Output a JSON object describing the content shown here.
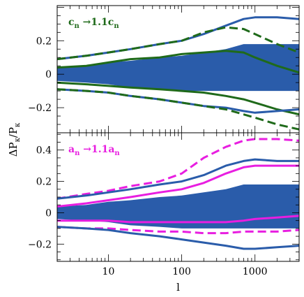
{
  "chart_data": [
    {
      "type": "line",
      "panel": "top",
      "annotation_main": "c",
      "annotation_sub": "n",
      "annotation_mid": " →1.1c",
      "annotation_sub2": "n",
      "annotation_color": "#1f6a1a",
      "xscale": "log",
      "xlim": [
        2,
        4000
      ],
      "ylim": [
        -0.35,
        0.41
      ],
      "xticks": [
        10,
        100,
        1000
      ],
      "xtick_labels": [
        "",
        "",
        ""
      ],
      "yticks": [
        -0.2,
        0,
        0.2
      ],
      "ytick_labels": [
        "−0.2",
        "0",
        "0.2"
      ],
      "band": {
        "color": "#2a5caa",
        "x": [
          2,
          5,
          10,
          20,
          50,
          100,
          200,
          400,
          700,
          1000,
          2000,
          4000
        ],
        "upper": [
          0.04,
          0.05,
          0.07,
          0.08,
          0.1,
          0.11,
          0.13,
          0.15,
          0.18,
          0.18,
          0.18,
          0.18
        ],
        "lower": [
          -0.04,
          -0.05,
          -0.06,
          -0.08,
          -0.09,
          -0.1,
          -0.1,
          -0.1,
          -0.1,
          -0.1,
          -0.1,
          -0.1
        ]
      },
      "series": [
        {
          "style": "blue-solid",
          "color": "#2a5caa",
          "x": [
            2,
            5,
            10,
            20,
            50,
            100,
            200,
            400,
            700,
            1000,
            2000,
            4000
          ],
          "y": [
            0.09,
            0.11,
            0.13,
            0.15,
            0.18,
            0.2,
            0.24,
            0.29,
            0.33,
            0.34,
            0.34,
            0.33
          ]
        },
        {
          "style": "green-dashed",
          "color": "#1f6a1a",
          "x": [
            2,
            5,
            10,
            20,
            50,
            100,
            200,
            400,
            700,
            1000,
            2000,
            4000
          ],
          "y": [
            0.09,
            0.11,
            0.13,
            0.15,
            0.18,
            0.2,
            0.25,
            0.28,
            0.27,
            0.24,
            0.18,
            0.13
          ]
        },
        {
          "style": "green-solid",
          "color": "#1f6a1a",
          "x": [
            2,
            5,
            10,
            20,
            50,
            100,
            200,
            400,
            700,
            1000,
            2000,
            4000
          ],
          "y": [
            0.04,
            0.05,
            0.07,
            0.09,
            0.1,
            0.12,
            0.13,
            0.14,
            0.13,
            0.1,
            0.05,
            0.01
          ]
        },
        {
          "style": "green-solid",
          "color": "#1f6a1a",
          "x": [
            2,
            5,
            10,
            20,
            50,
            100,
            200,
            400,
            700,
            1000,
            2000,
            4000
          ],
          "y": [
            -0.05,
            -0.06,
            -0.07,
            -0.08,
            -0.09,
            -0.1,
            -0.11,
            -0.13,
            -0.15,
            -0.17,
            -0.21,
            -0.24
          ]
        },
        {
          "style": "blue-solid",
          "color": "#2a5caa",
          "x": [
            2,
            5,
            10,
            20,
            50,
            100,
            200,
            400,
            700,
            1000,
            2000,
            4000
          ],
          "y": [
            -0.09,
            -0.1,
            -0.11,
            -0.13,
            -0.15,
            -0.17,
            -0.19,
            -0.2,
            -0.22,
            -0.23,
            -0.22,
            -0.21
          ]
        },
        {
          "style": "green-dashed",
          "color": "#1f6a1a",
          "x": [
            2,
            5,
            10,
            20,
            50,
            100,
            200,
            400,
            700,
            1000,
            2000,
            4000
          ],
          "y": [
            -0.09,
            -0.1,
            -0.11,
            -0.13,
            -0.15,
            -0.17,
            -0.19,
            -0.21,
            -0.24,
            -0.26,
            -0.3,
            -0.33
          ]
        }
      ]
    },
    {
      "type": "line",
      "panel": "bottom",
      "annotation_main": "a",
      "annotation_sub": "n",
      "annotation_mid": " →1.1a",
      "annotation_sub2": "n",
      "annotation_color": "#e81ee0",
      "xscale": "log",
      "xlim": [
        2,
        4000
      ],
      "ylim": [
        -0.31,
        0.51
      ],
      "xticks": [
        10,
        100,
        1000
      ],
      "xtick_labels": [
        "10",
        "100",
        "1000"
      ],
      "yticks": [
        -0.2,
        0,
        0.2,
        0.4
      ],
      "ytick_labels": [
        "−0.2",
        "0",
        "0.2",
        "0.4"
      ],
      "xlabel": "l",
      "band": {
        "color": "#2a5caa",
        "x": [
          2,
          5,
          10,
          20,
          50,
          100,
          200,
          400,
          700,
          1000,
          2000,
          4000
        ],
        "upper": [
          0.04,
          0.05,
          0.07,
          0.08,
          0.1,
          0.11,
          0.13,
          0.15,
          0.18,
          0.18,
          0.18,
          0.18
        ],
        "lower": [
          -0.04,
          -0.05,
          -0.06,
          -0.08,
          -0.09,
          -0.1,
          -0.1,
          -0.1,
          -0.1,
          -0.1,
          -0.1,
          -0.1
        ]
      },
      "series": [
        {
          "style": "magenta-dashed",
          "color": "#e81ee0",
          "x": [
            2,
            5,
            10,
            20,
            50,
            100,
            200,
            400,
            700,
            1000,
            2000,
            4000
          ],
          "y": [
            0.09,
            0.12,
            0.14,
            0.17,
            0.2,
            0.25,
            0.35,
            0.42,
            0.46,
            0.47,
            0.47,
            0.46
          ]
        },
        {
          "style": "blue-solid",
          "color": "#2a5caa",
          "x": [
            2,
            5,
            10,
            20,
            50,
            100,
            200,
            400,
            700,
            1000,
            2000,
            4000
          ],
          "y": [
            0.09,
            0.11,
            0.13,
            0.15,
            0.18,
            0.2,
            0.24,
            0.3,
            0.33,
            0.34,
            0.33,
            0.33
          ]
        },
        {
          "style": "magenta-solid",
          "color": "#e81ee0",
          "x": [
            2,
            5,
            10,
            20,
            50,
            100,
            200,
            400,
            700,
            1000,
            2000,
            4000
          ],
          "y": [
            0.04,
            0.06,
            0.08,
            0.1,
            0.13,
            0.15,
            0.19,
            0.25,
            0.29,
            0.3,
            0.3,
            0.3
          ]
        },
        {
          "style": "magenta-solid",
          "color": "#e81ee0",
          "x": [
            2,
            5,
            10,
            20,
            50,
            100,
            200,
            400,
            700,
            1000,
            2000,
            4000
          ],
          "y": [
            -0.05,
            -0.05,
            -0.05,
            -0.06,
            -0.06,
            -0.06,
            -0.06,
            -0.06,
            -0.05,
            -0.04,
            -0.03,
            -0.02
          ]
        },
        {
          "style": "magenta-dashed",
          "color": "#e81ee0",
          "x": [
            2,
            5,
            10,
            20,
            50,
            100,
            200,
            400,
            700,
            1000,
            2000,
            4000
          ],
          "y": [
            -0.09,
            -0.1,
            -0.1,
            -0.11,
            -0.12,
            -0.12,
            -0.13,
            -0.13,
            -0.12,
            -0.12,
            -0.12,
            -0.11
          ]
        },
        {
          "style": "blue-solid",
          "color": "#2a5caa",
          "x": [
            2,
            5,
            10,
            20,
            50,
            100,
            200,
            400,
            700,
            1000,
            2000,
            4000
          ],
          "y": [
            -0.09,
            -0.1,
            -0.11,
            -0.13,
            -0.15,
            -0.17,
            -0.19,
            -0.21,
            -0.23,
            -0.23,
            -0.22,
            -0.21
          ]
        }
      ]
    }
  ],
  "ylabel_shared": "ΔP",
  "ylabel_shared_sub": "κ",
  "ylabel_shared_mid": "/P",
  "ylabel_shared_sub2": "κ"
}
